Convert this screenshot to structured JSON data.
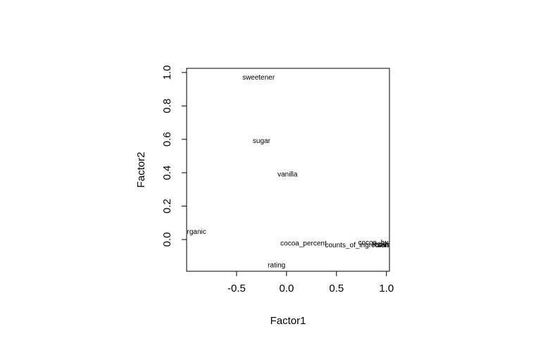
{
  "chart_data": {
    "type": "scatter",
    "title": "",
    "xlabel": "Factor1",
    "ylabel": "Factor2",
    "xlim": [
      -1.0,
      1.03
    ],
    "ylim": [
      -0.19,
      1.025
    ],
    "x_ticks": [
      "-0.5",
      "0.0",
      "0.5",
      "1.0"
    ],
    "y_ticks": [
      "0.0",
      "0.2",
      "0.4",
      "0.6",
      "0.8",
      "1.0"
    ],
    "points": [
      {
        "label": "sweetener",
        "x": -0.28,
        "y": 0.975
      },
      {
        "label": "sugar",
        "x": -0.25,
        "y": 0.595
      },
      {
        "label": "vanilla",
        "x": 0.01,
        "y": 0.395
      },
      {
        "label": "organic",
        "x": -0.92,
        "y": 0.05
      },
      {
        "label": "cocoa_percent",
        "x": 0.17,
        "y": -0.02
      },
      {
        "label": "rating",
        "x": -0.1,
        "y": -0.15
      },
      {
        "label": "counts_of_ingredients",
        "x": 0.73,
        "y": -0.03
      },
      {
        "label": "cocoa_butter",
        "x": 0.92,
        "y": -0.015
      },
      {
        "label": "salt",
        "x": 0.97,
        "y": -0.03
      },
      {
        "label": "lecithin",
        "x": 0.97,
        "y": -0.025
      }
    ]
  }
}
